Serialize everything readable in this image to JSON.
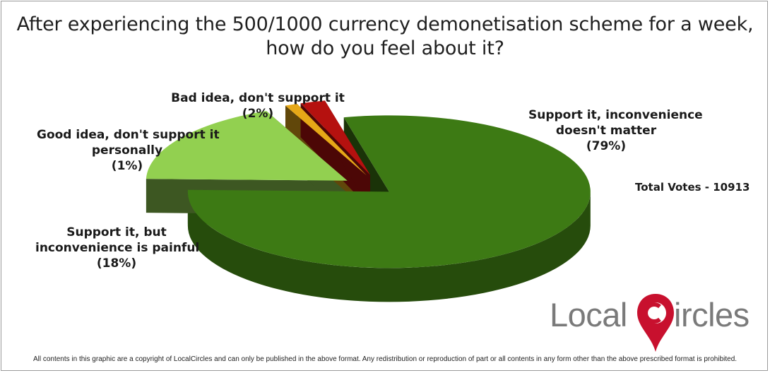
{
  "title_line1": "After experiencing the 500/1000 currency demonetisation scheme for a week,",
  "title_line2": "how do you feel about it?",
  "total_votes": "Total Votes - 10913",
  "logo": {
    "part1": "Local",
    "part2": "ircles"
  },
  "footer": "All contents in this graphic are a copyright of LocalCircles and can only be published in the above format. Any redistribution or reproduction of part or all contents in any form other than the above prescribed format is prohibited.",
  "colors": {
    "support_doesnt_matter": "#3d7a14",
    "support_painful": "#92d050",
    "good_idea_not_personally": "#e6a817",
    "bad_idea": "#b5110f",
    "logo_red": "#c8102e",
    "logo_gray": "#7a7a7a"
  },
  "chart_data": {
    "type": "pie",
    "title": "After experiencing the 500/1000 currency demonetisation scheme for a week, how do you feel about it?",
    "three_d": true,
    "exploded": true,
    "slices": [
      {
        "label_lines": [
          "Support it, inconvenience",
          "doesn't matter"
        ],
        "pct_label": "(79%)",
        "value": 79
      },
      {
        "label_lines": [
          "Support it, but",
          "inconvenience is painful"
        ],
        "pct_label": "(18%)",
        "value": 18
      },
      {
        "label_lines": [
          "Good idea, don't support it",
          "personally"
        ],
        "pct_label": "(1%)",
        "value": 1
      },
      {
        "label_lines": [
          "Bad idea, don't support it"
        ],
        "pct_label": "(2%)",
        "value": 2
      }
    ]
  }
}
